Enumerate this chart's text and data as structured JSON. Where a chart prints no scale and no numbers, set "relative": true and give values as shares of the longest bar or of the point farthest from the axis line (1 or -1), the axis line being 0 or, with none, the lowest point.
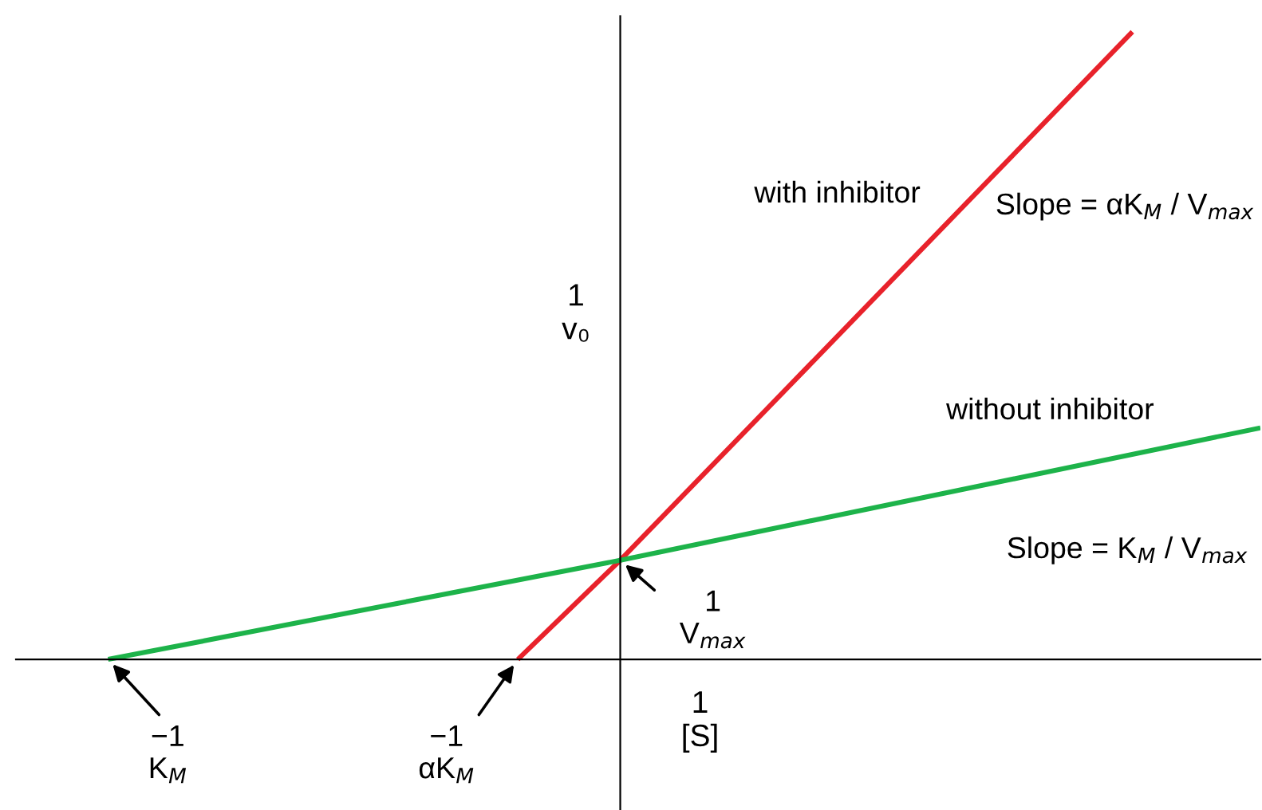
{
  "chart_data": {
    "type": "line",
    "relative": true,
    "xlabel": "1\n[S]",
    "ylabel": "1\nv₀",
    "categories": [
      null,
      null,
      null,
      null,
      null,
      null,
      null,
      null,
      null,
      null,
      null,
      null,
      null,
      null,
      null,
      null,
      null,
      null,
      null,
      null,
      null,
      null,
      null,
      null,
      null,
      null,
      null,
      null,
      null,
      null,
      null,
      null,
      null,
      null,
      null,
      null,
      null,
      null,
      null,
      null,
      null,
      null,
      null,
      null,
      null,
      null
    ],
    "series": [
      {
        "color": "#e8222b",
        "values": [
          null,
          null,
          null,
          null,
          null,
          null,
          null,
          null,
          null,
          null,
          null,
          null,
          null,
          null,
          null,
          null,
          0,
          null,
          null,
          null,
          0.158,
          null,
          null,
          null,
          null,
          null,
          null,
          null,
          null,
          null,
          null,
          null,
          null,
          null,
          null,
          null,
          null,
          null,
          null,
          null,
          1,
          null,
          null,
          null,
          null,
          null
        ]
      },
      {
        "color": "#1db34a",
        "values": [
          0,
          null,
          null,
          null,
          null,
          null,
          null,
          null,
          null,
          null,
          null,
          null,
          null,
          null,
          null,
          null,
          null,
          null,
          null,
          null,
          0.158,
          null,
          null,
          null,
          null,
          null,
          null,
          null,
          null,
          null,
          null,
          null,
          null,
          null,
          null,
          null,
          null,
          null,
          null,
          null,
          null,
          null,
          null,
          null,
          null,
          0.369
        ]
      }
    ],
    "annotations": [
      "with inhibitor",
      "Slope = αK$_{M}$ / V$_{max}$",
      "without inhibitor",
      "Slope = K$_{M}$ / V$_{max}$",
      "1\nV$_{max}$",
      "−1\nK$_{M}$",
      "−1\nαK$_{M}$"
    ],
    "legend": false,
    "grid": false,
    "marker": "none",
    "line_style": "solid"
  }
}
